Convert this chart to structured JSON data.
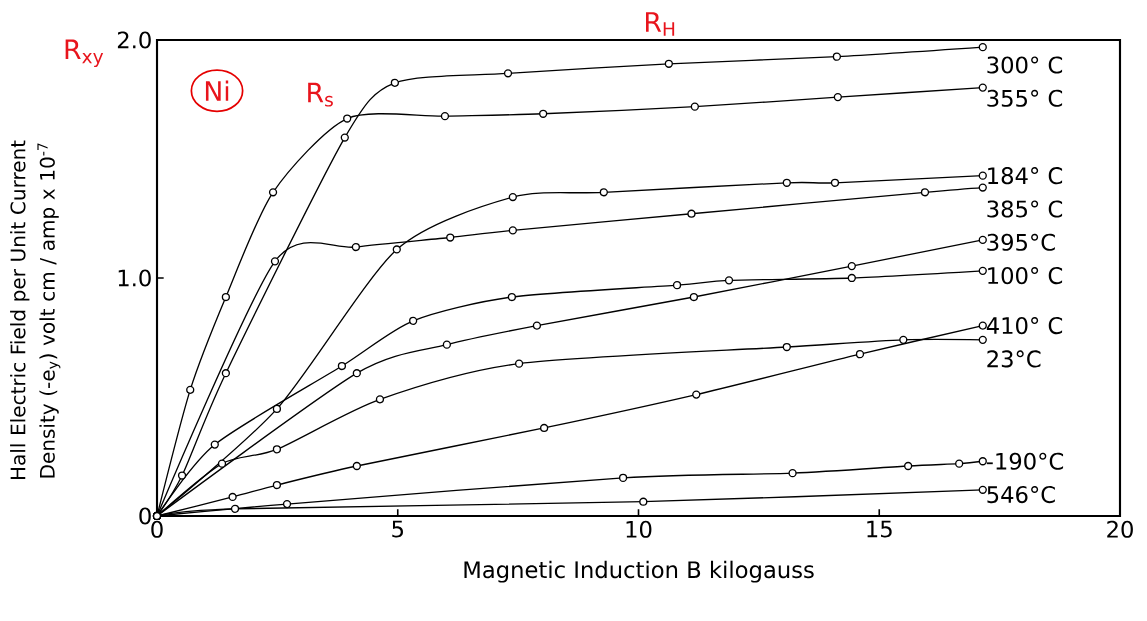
{
  "chart_data": {
    "type": "line",
    "xlabel": "Magnetic Induction B kilogauss",
    "ylabel": "Hall Electric Field per Unit Current Density (-e$_{y}$) volt cm / amp x 10$^{-7}$",
    "xlim": [
      0,
      20
    ],
    "ylim": [
      0,
      2.0
    ],
    "xticks": [
      0,
      5,
      10,
      15,
      20
    ],
    "yticks": [
      0,
      {
        "value": 1,
        "label": "1.0"
      },
      {
        "value": 2,
        "label": "2.0"
      }
    ],
    "grid": false,
    "marker": "circle",
    "line_style": "solid",
    "series": [
      {
        "name": "300° C",
        "color": "#000000",
        "x": [
          0,
          0.52,
          1.43,
          3.9,
          4.94,
          7.29,
          10.63,
          14.12,
          17.15
        ],
        "values": [
          0,
          0.17,
          0.6,
          1.59,
          1.82,
          1.86,
          1.9,
          1.93,
          1.97
        ]
      },
      {
        "name": "355° C",
        "color": "#000000",
        "x": [
          0,
          0.69,
          1.43,
          2.41,
          3.95,
          5.98,
          8.02,
          11.17,
          14.14,
          17.15
        ],
        "values": [
          0,
          0.53,
          0.92,
          1.36,
          1.67,
          1.68,
          1.69,
          1.72,
          1.76,
          1.8
        ]
      },
      {
        "name": "184° C",
        "color": "#000000",
        "x": [
          0,
          2.49,
          4.98,
          7.39,
          9.28,
          13.08,
          14.08,
          17.15
        ],
        "values": [
          0,
          0.45,
          1.12,
          1.34,
          1.36,
          1.4,
          1.4,
          1.43
        ]
      },
      {
        "name": "385° C",
        "color": "#000000",
        "x": [
          0,
          0.69,
          1.43,
          2.45,
          4.13,
          6.09,
          7.39,
          11.1,
          15.95,
          17.15
        ],
        "values": [
          0,
          null,
          null,
          1.07,
          1.13,
          1.17,
          1.2,
          1.27,
          1.36,
          1.38
        ]
      },
      {
        "name": "395°C",
        "color": "#000000",
        "x": [
          0,
          4.15,
          6.02,
          7.89,
          11.15,
          14.43,
          17.15
        ],
        "values": [
          0,
          0.6,
          0.72,
          0.8,
          0.92,
          1.05,
          1.16
        ]
      },
      {
        "name": "100° C",
        "color": "#000000",
        "x": [
          0,
          1.2,
          3.84,
          5.32,
          7.37,
          10.8,
          11.88,
          14.43,
          17.15
        ],
        "values": [
          0,
          0.3,
          0.63,
          0.82,
          0.92,
          0.97,
          0.99,
          1.0,
          1.03
        ]
      },
      {
        "name": "410° C",
        "color": "#000000",
        "x": [
          0,
          1.57,
          2.49,
          4.15,
          8.04,
          11.2,
          14.6,
          17.15
        ],
        "values": [
          0,
          0.08,
          0.13,
          0.21,
          0.37,
          0.51,
          0.68,
          0.8
        ]
      },
      {
        "name": "23°C",
        "color": "#000000",
        "x": [
          0,
          1.35,
          2.49,
          4.63,
          7.52,
          13.08,
          15.5,
          17.15
        ],
        "values": [
          0,
          0.22,
          0.28,
          0.49,
          0.64,
          0.71,
          0.74,
          0.74
        ]
      },
      {
        "name": "-190°C",
        "color": "#000000",
        "x": [
          0,
          2.7,
          9.68,
          13.2,
          15.6,
          16.66,
          17.15
        ],
        "values": [
          0,
          0.05,
          0.16,
          0.18,
          0.21,
          0.22,
          0.23
        ]
      },
      {
        "name": "546°C",
        "color": "#000000",
        "x": [
          0,
          1.62,
          10.1,
          17.15
        ],
        "values": [
          0,
          0.03,
          0.06,
          0.11
        ]
      }
    ],
    "annotations": [
      "R$_{xy}$",
      "Ni",
      "R$_{s}$",
      "R$_{H}$"
    ]
  }
}
